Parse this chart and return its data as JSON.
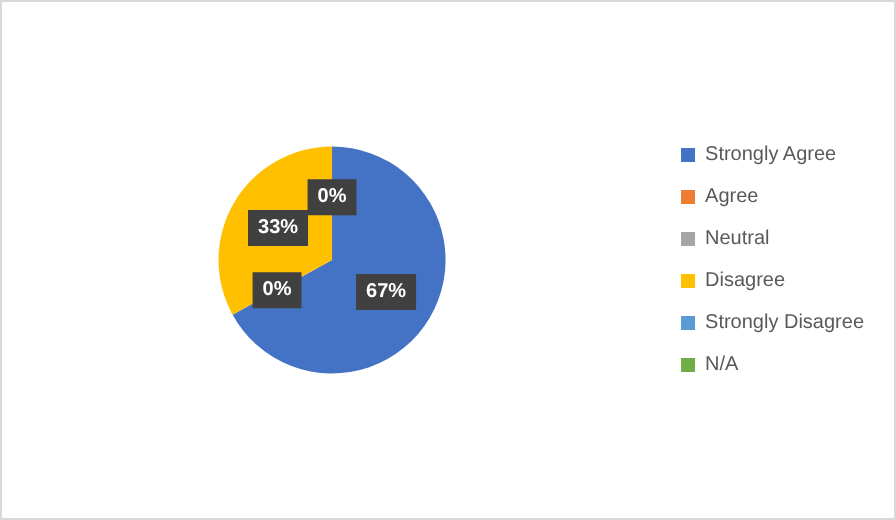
{
  "chart_data": {
    "type": "pie",
    "categories": [
      "Strongly Agree",
      "Agree",
      "Neutral",
      "Disagree",
      "Strongly Disagree",
      "N/A"
    ],
    "values": [
      67,
      0,
      0,
      33,
      0,
      0
    ],
    "colors": [
      "#4472c4",
      "#ed7d31",
      "#a5a5a5",
      "#ffc000",
      "#5b9bd5",
      "#70ad47"
    ],
    "value_labels": [
      "67%",
      "0%",
      null,
      "33%",
      "0%",
      null
    ],
    "legend": "right"
  }
}
